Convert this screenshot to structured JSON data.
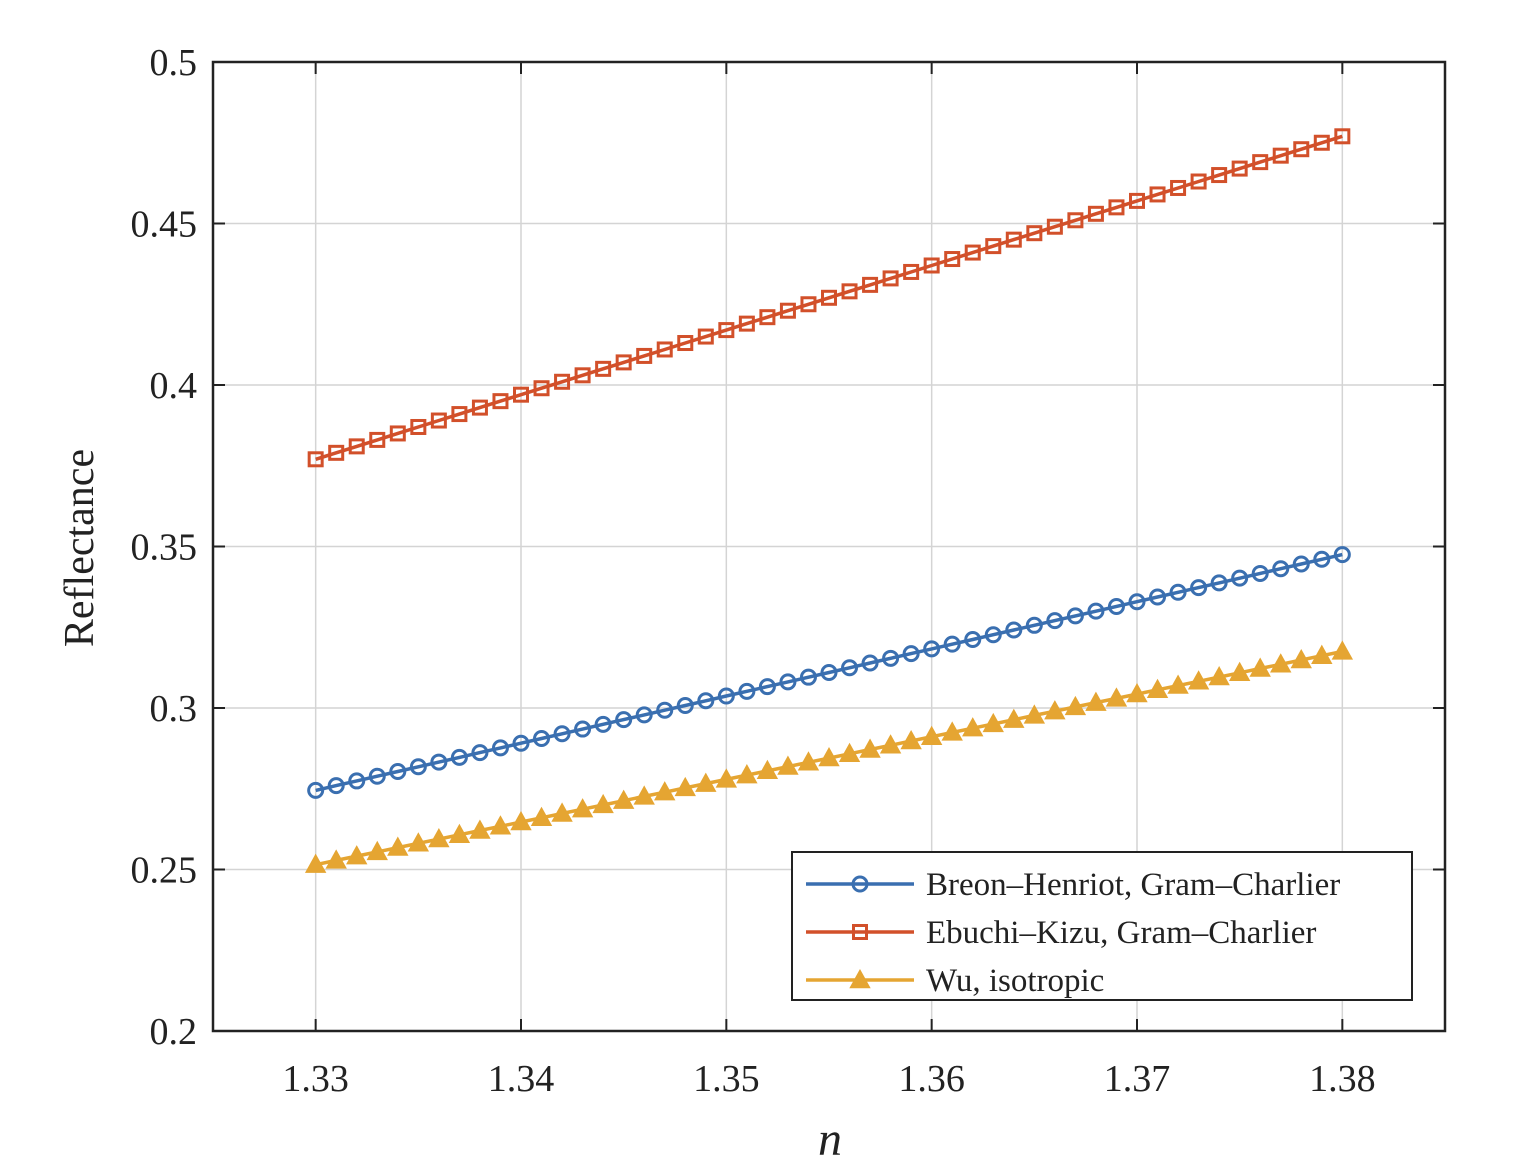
{
  "chart_data": {
    "type": "line",
    "title": "",
    "xlabel": "n",
    "ylabel": "Reflectance",
    "xlim": [
      1.325,
      1.385
    ],
    "ylim": [
      0.2,
      0.5
    ],
    "x_start": 1.33,
    "x_end": 1.38,
    "x_ticks": [
      "1.33",
      "1.34",
      "1.35",
      "1.36",
      "1.37",
      "1.38"
    ],
    "y_ticks": [
      "0.2",
      "0.25",
      "0.3",
      "0.35",
      "0.4",
      "0.45",
      "0.5"
    ],
    "grid": true,
    "legend_position": "bottom-right",
    "series": [
      {
        "name": "Breon–Henriot, Gram–Charlier",
        "color": "#3a6fb0",
        "marker": "circle",
        "start": 0.2745,
        "end": 0.3475
      },
      {
        "name": "Ebuchi–Kizu, Gram–Charlier",
        "color": "#d2502a",
        "marker": "square",
        "start": 0.377,
        "end": 0.477
      },
      {
        "name": "Wu, isotropic",
        "color": "#e5a532",
        "marker": "triangle",
        "start": 0.2515,
        "end": 0.3175
      }
    ]
  }
}
